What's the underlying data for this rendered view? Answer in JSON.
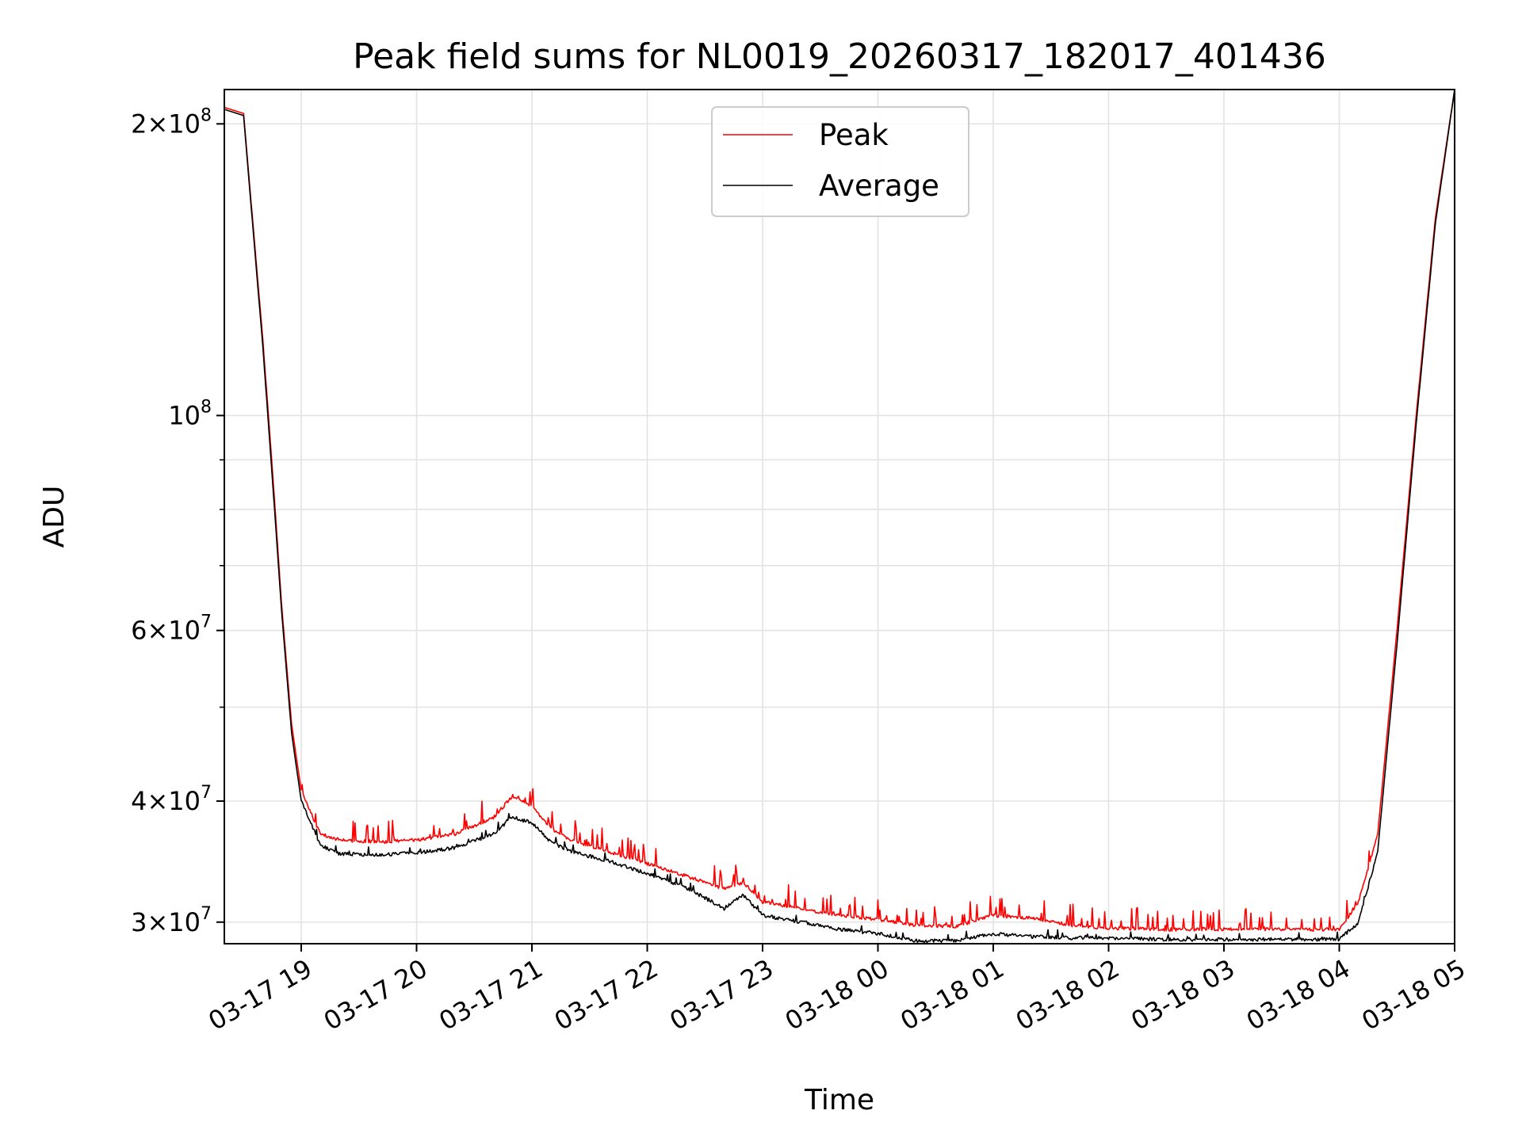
{
  "chart_data": {
    "type": "line",
    "title": "Peak field sums for NL0019_20260317_182017_401436",
    "xlabel": "Time",
    "ylabel": "ADU",
    "yscale": "log",
    "ylim": [
      28500000,
      217000000
    ],
    "xlim": [
      "2026-03-17 18:20",
      "2026-03-18 05:00"
    ],
    "grid": true,
    "legend_position": "upper-center",
    "x_ticks": [
      "03-17 19",
      "03-17 20",
      "03-17 21",
      "03-17 22",
      "03-17 23",
      "03-18 00",
      "03-18 01",
      "03-18 02",
      "03-18 03",
      "03-18 04",
      "03-18 05"
    ],
    "y_ticks": [
      {
        "value": 30000000,
        "mantissa": "3",
        "exponent": "7"
      },
      {
        "value": 40000000,
        "mantissa": "4",
        "exponent": "7"
      },
      {
        "value": 60000000,
        "mantissa": "6",
        "exponent": "7"
      },
      {
        "value": 100000000,
        "mantissa": "",
        "exponent": "8"
      },
      {
        "value": 200000000,
        "mantissa": "2",
        "exponent": "8"
      }
    ],
    "y_minor_ticks": [
      50000000,
      70000000,
      80000000,
      90000000
    ],
    "x": [
      "03-17 18:20",
      "03-17 18:30",
      "03-17 18:40",
      "03-17 18:45",
      "03-17 18:50",
      "03-17 18:55",
      "03-17 19:00",
      "03-17 19:10",
      "03-17 19:20",
      "03-17 19:40",
      "03-17 20:00",
      "03-17 20:20",
      "03-17 20:40",
      "03-17 20:50",
      "03-17 21:00",
      "03-17 21:10",
      "03-17 21:20",
      "03-17 21:40",
      "03-17 22:00",
      "03-17 22:20",
      "03-17 22:40",
      "03-17 22:50",
      "03-17 23:00",
      "03-17 23:20",
      "03-17 23:40",
      "03-18 00:00",
      "03-18 00:20",
      "03-18 00:40",
      "03-18 01:00",
      "03-18 01:20",
      "03-18 01:40",
      "03-18 02:00",
      "03-18 02:30",
      "03-18 03:00",
      "03-18 03:30",
      "03-18 04:00",
      "03-18 04:10",
      "03-18 04:20",
      "03-18 04:30",
      "03-18 04:40",
      "03-18 04:50",
      "03-18 05:00"
    ],
    "series": [
      {
        "name": "Peak",
        "color": "#ff0000",
        "values": [
          208000000,
          205000000,
          120000000,
          88000000,
          63000000,
          48000000,
          41000000,
          37000000,
          36500000,
          36300000,
          36500000,
          37000000,
          38500000,
          40500000,
          39500000,
          37500000,
          36500000,
          35500000,
          34500000,
          33500000,
          32500000,
          33000000,
          31500000,
          31000000,
          30500000,
          30200000,
          29800000,
          29700000,
          30500000,
          30300000,
          29800000,
          29600000,
          29500000,
          29500000,
          29500000,
          29500000,
          31500000,
          37000000,
          60000000,
          100000000,
          160000000,
          217000000
        ]
      },
      {
        "name": "Average",
        "color": "#000000",
        "values": [
          207000000,
          204000000,
          118000000,
          86000000,
          62000000,
          47000000,
          40000000,
          36000000,
          35300000,
          35200000,
          35400000,
          35800000,
          37000000,
          38500000,
          38000000,
          36300000,
          35500000,
          34700000,
          33700000,
          32600000,
          31000000,
          32000000,
          30500000,
          30000000,
          29500000,
          29200000,
          28700000,
          28700000,
          29200000,
          29000000,
          28900000,
          28900000,
          28800000,
          28800000,
          28800000,
          28800000,
          30000000,
          35500000,
          58000000,
          98000000,
          158000000,
          217000000
        ]
      }
    ]
  }
}
